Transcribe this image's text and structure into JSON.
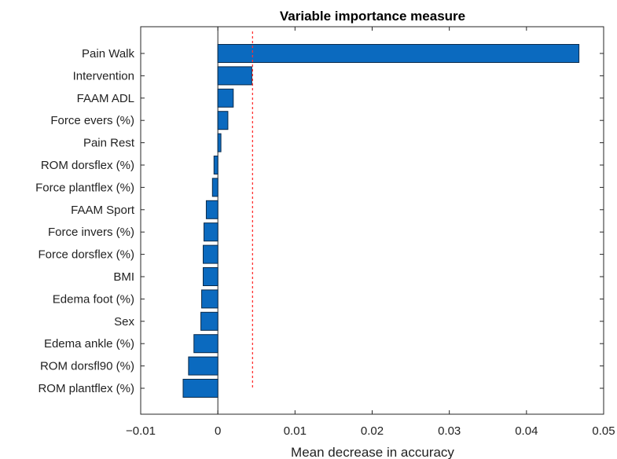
{
  "chart_data": {
    "type": "bar",
    "orientation": "horizontal",
    "title": "Variable importance measure",
    "xlabel": "Mean decrease in accuracy",
    "ylabel": "",
    "xlim": [
      -0.01,
      0.05
    ],
    "xticks": [
      -0.01,
      0,
      0.01,
      0.02,
      0.03,
      0.04,
      0.05
    ],
    "xtick_labels": [
      "−0.01",
      "0",
      "0.01",
      "0.02",
      "0.03",
      "0.04",
      "0.05"
    ],
    "categories": [
      "Pain Walk",
      "Intervention",
      "FAAM ADL",
      "Force evers (%)",
      "Pain Rest",
      "ROM dorsflex (%)",
      "Force plantflex (%)",
      "FAAM Sport",
      "Force invers (%)",
      "Force dorsflex (%)",
      "BMI",
      "Edema foot (%)",
      "Sex",
      "Edema ankle (%)",
      "ROM dorsfl90 (%)",
      "ROM plantflex (%)"
    ],
    "values": [
      0.0468,
      0.0044,
      0.002,
      0.0013,
      0.0004,
      -0.0005,
      -0.0007,
      -0.0015,
      -0.0018,
      -0.0019,
      -0.0019,
      -0.0021,
      -0.0022,
      -0.0031,
      -0.0038,
      -0.0045
    ],
    "reference_line": {
      "x": 0.0045,
      "style": "dotted",
      "color": "#ff3333"
    },
    "zero_line": true,
    "bar_color": "#0b6abf",
    "grid": false,
    "legend": "none"
  }
}
